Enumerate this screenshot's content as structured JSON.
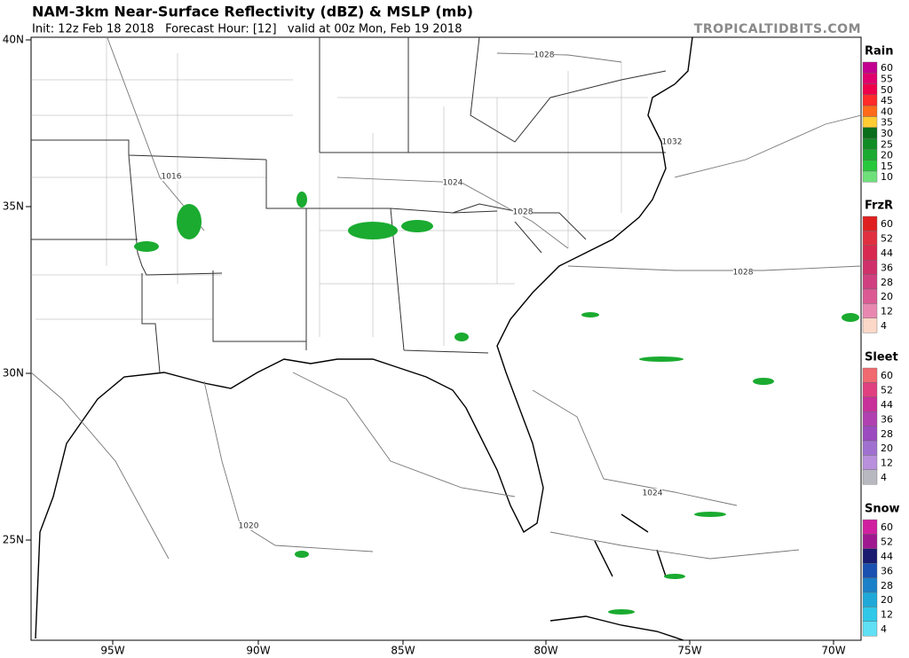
{
  "header": {
    "title": "NAM-3km Near-Surface Reflectivity (dBZ) & MSLP (mb)",
    "subtitle": "Init: 12z Feb 18 2018   Forecast Hour: [12]   valid at 00z Mon, Feb 19 2018",
    "watermark": "TROPICALTIDBITS.COM"
  },
  "map": {
    "lat_labels": [
      "40N",
      "35N",
      "30N",
      "25N"
    ],
    "lon_labels": [
      "95W",
      "90W",
      "85W",
      "80W",
      "75W",
      "70W"
    ],
    "isobar_labels": [
      "1028",
      "1032",
      "1016",
      "1024",
      "1028",
      "1028",
      "1024",
      "1020"
    ]
  },
  "legend": [
    {
      "title": "Rain",
      "levels": [
        60,
        55,
        50,
        45,
        40,
        35,
        30,
        25,
        20,
        15,
        10
      ],
      "colors": [
        "#c2008f",
        "#e0006e",
        "#f0004a",
        "#ff2a2a",
        "#ff6a1a",
        "#ffcc33",
        "#0a6e1a",
        "#128c24",
        "#1aab30",
        "#28c83c",
        "#6ee07a"
      ]
    },
    {
      "title": "FrzR",
      "levels": [
        60,
        52,
        44,
        36,
        28,
        20,
        12,
        4
      ],
      "colors": [
        "#e02020",
        "#e03040",
        "#d82a50",
        "#d0306a",
        "#d04080",
        "#dc5a94",
        "#e888b0",
        "#fcd8c8"
      ]
    },
    {
      "title": "Sleet",
      "levels": [
        60,
        52,
        44,
        36,
        28,
        20,
        12,
        4
      ],
      "colors": [
        "#f06a70",
        "#e04080",
        "#c8309a",
        "#b040b0",
        "#9c4ac0",
        "#a070d0",
        "#b890dc",
        "#b8b8c0"
      ]
    },
    {
      "title": "Snow",
      "levels": [
        60,
        52,
        44,
        36,
        28,
        20,
        12,
        4
      ],
      "colors": [
        "#d020a0",
        "#a01890",
        "#1a1a70",
        "#1a50b0",
        "#1a80c8",
        "#20a8d8",
        "#30c8e8",
        "#60e0f4"
      ]
    }
  ]
}
